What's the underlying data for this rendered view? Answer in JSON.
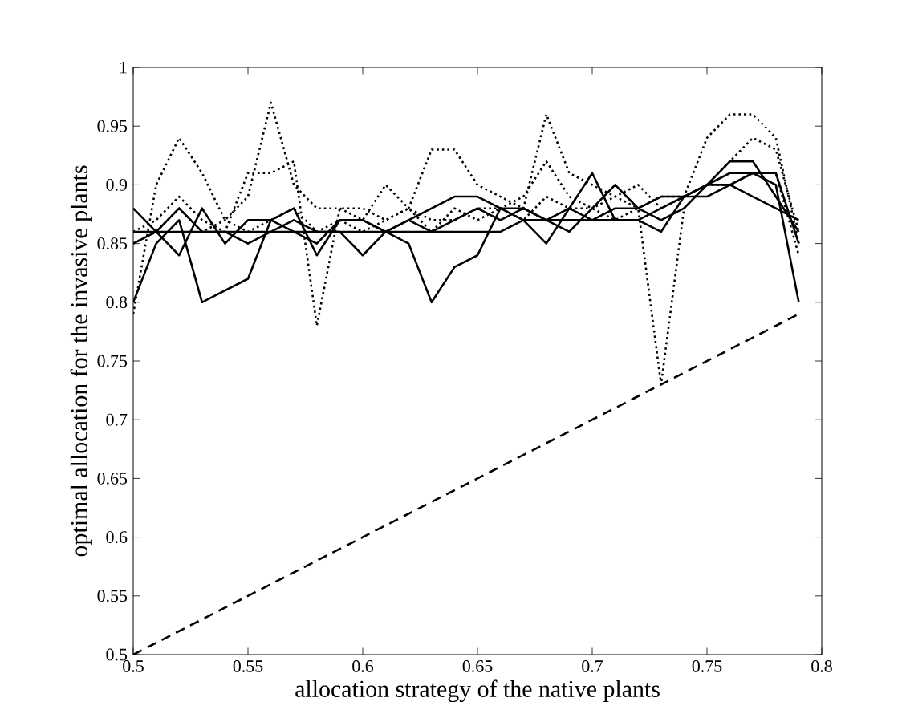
{
  "chart_data": {
    "type": "line",
    "xlabel": "allocation strategy of the native plants",
    "ylabel": "optimal allocation for the invasive plants",
    "x": [
      0.5,
      0.51,
      0.52,
      0.53,
      0.54,
      0.55,
      0.56,
      0.57,
      0.58,
      0.59,
      0.6,
      0.61,
      0.62,
      0.63,
      0.64,
      0.65,
      0.66,
      0.67,
      0.68,
      0.69,
      0.7,
      0.71,
      0.72,
      0.73,
      0.74,
      0.75,
      0.76,
      0.77,
      0.78,
      0.79
    ],
    "series": [
      {
        "color": "#000000",
        "line_style": "solid",
        "values": [
          0.86,
          0.86,
          0.86,
          0.86,
          0.86,
          0.86,
          0.86,
          0.86,
          0.86,
          0.86,
          0.86,
          0.86,
          0.86,
          0.86,
          0.86,
          0.86,
          0.86,
          0.87,
          0.87,
          0.87,
          0.87,
          0.87,
          0.87,
          0.88,
          0.89,
          0.89,
          0.9,
          0.91,
          0.91,
          0.85
        ]
      },
      {
        "color": "#000000",
        "line_style": "solid",
        "values": [
          0.88,
          0.86,
          0.84,
          0.88,
          0.85,
          0.87,
          0.87,
          0.86,
          0.85,
          0.87,
          0.87,
          0.86,
          0.87,
          0.88,
          0.89,
          0.89,
          0.88,
          0.88,
          0.87,
          0.86,
          0.88,
          0.9,
          0.88,
          0.87,
          0.88,
          0.9,
          0.92,
          0.92,
          0.89,
          0.86
        ]
      },
      {
        "color": "#000000",
        "line_style": "solid",
        "values": [
          0.8,
          0.85,
          0.87,
          0.8,
          0.81,
          0.82,
          0.87,
          0.88,
          0.84,
          0.87,
          0.87,
          0.86,
          0.85,
          0.8,
          0.83,
          0.84,
          0.88,
          0.87,
          0.85,
          0.88,
          0.91,
          0.87,
          0.87,
          0.86,
          0.89,
          0.9,
          0.91,
          0.91,
          0.9,
          0.8
        ]
      },
      {
        "color": "#000000",
        "line_style": "solid",
        "values": [
          0.85,
          0.86,
          0.88,
          0.86,
          0.86,
          0.85,
          0.86,
          0.87,
          0.86,
          0.86,
          0.84,
          0.86,
          0.87,
          0.86,
          0.87,
          0.88,
          0.87,
          0.88,
          0.87,
          0.88,
          0.87,
          0.88,
          0.88,
          0.89,
          0.89,
          0.9,
          0.9,
          0.89,
          0.88,
          0.87
        ]
      },
      {
        "color": "#000000",
        "line_style": "dotted",
        "values": [
          0.79,
          0.9,
          0.94,
          0.91,
          0.87,
          0.89,
          0.97,
          0.9,
          0.88,
          0.88,
          0.87,
          0.9,
          0.88,
          0.93,
          0.93,
          0.9,
          0.89,
          0.88,
          0.96,
          0.91,
          0.9,
          0.89,
          0.9,
          0.88,
          0.89,
          0.94,
          0.96,
          0.96,
          0.94,
          0.85
        ]
      },
      {
        "color": "#000000",
        "line_style": "dotted",
        "values": [
          0.86,
          0.87,
          0.89,
          0.87,
          0.86,
          0.91,
          0.91,
          0.92,
          0.78,
          0.88,
          0.88,
          0.87,
          0.88,
          0.87,
          0.87,
          0.88,
          0.88,
          0.89,
          0.92,
          0.89,
          0.88,
          0.87,
          0.88,
          0.73,
          0.88,
          0.9,
          0.92,
          0.94,
          0.93,
          0.86
        ]
      },
      {
        "color": "#000000",
        "line_style": "dotted",
        "values": [
          0.85,
          0.86,
          0.88,
          0.86,
          0.87,
          0.86,
          0.87,
          0.88,
          0.86,
          0.87,
          0.86,
          0.87,
          0.88,
          0.86,
          0.88,
          0.87,
          0.88,
          0.87,
          0.89,
          0.88,
          0.88,
          0.89,
          0.88,
          0.89,
          0.89,
          0.9,
          0.9,
          0.91,
          0.91,
          0.84
        ]
      },
      {
        "color": "#000000",
        "line_style": "dashed",
        "x": [
          0.5,
          0.79
        ],
        "values": [
          0.5,
          0.79
        ]
      }
    ],
    "xlim": [
      0.5,
      0.8
    ],
    "ylim": [
      0.5,
      1
    ],
    "xticks": [
      0.5,
      0.55,
      0.6,
      0.65,
      0.7,
      0.75,
      0.8
    ],
    "yticks": [
      0.5,
      0.55,
      0.6,
      0.65,
      0.7,
      0.75,
      0.8,
      0.85,
      0.9,
      0.95,
      1
    ],
    "marker": "none"
  }
}
